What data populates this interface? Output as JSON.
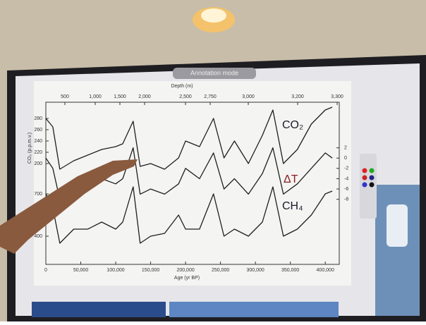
{
  "banner": "Annotation mode",
  "chart_data": {
    "type": "line",
    "xlabel": "Age (yr BP)",
    "x2label": "Depth (m)",
    "x": [
      0,
      10000,
      20000,
      40000,
      60000,
      80000,
      100000,
      110000,
      125000,
      135000,
      150000,
      170000,
      190000,
      200000,
      220000,
      240000,
      255000,
      270000,
      290000,
      310000,
      325000,
      340000,
      360000,
      380000,
      400000,
      410000
    ],
    "xlim": [
      0,
      420000
    ],
    "xticks": [
      0,
      {
        "value": 50000,
        "label": "50,000"
      },
      {
        "value": 100000,
        "label": "100,000"
      },
      {
        "value": 150000,
        "label": "150,000"
      },
      {
        "value": 200000,
        "label": "200,000"
      },
      {
        "value": 250000,
        "label": "250,000"
      },
      {
        "value": 300000,
        "label": "300,000"
      },
      {
        "value": 350000,
        "label": "350,000"
      },
      {
        "value": 400000,
        "label": "400,000"
      }
    ],
    "x2ticks": [
      500,
      {
        "value": 1000,
        "label": "1,000"
      },
      {
        "value": 1500,
        "label": "1,500"
      },
      {
        "value": 2000,
        "label": "2,000"
      },
      {
        "value": 2500,
        "label": "2,500"
      },
      {
        "value": 2750,
        "label": "2,750"
      },
      {
        "value": 3000,
        "label": "3,000"
      },
      {
        "value": 3200,
        "label": "3,200"
      },
      {
        "value": 3300,
        "label": "3,300"
      }
    ],
    "series": [
      {
        "name": "CO₂",
        "color": "#1f1f1f",
        "label_color": "#1a1a2a",
        "ylabel": "CO₂ (p.p.m.v.)",
        "ylim": [
          160,
          300
        ],
        "yticks": [
          200,
          220,
          240,
          260,
          280
        ],
        "values": [
          280,
          265,
          190,
          205,
          215,
          225,
          230,
          235,
          275,
          195,
          200,
          190,
          210,
          240,
          230,
          280,
          210,
          240,
          200,
          250,
          295,
          200,
          225,
          270,
          295,
          300
        ]
      },
      {
        "name": "ΔT",
        "color": "#1f1f1f",
        "label_color": "#8a1c1c",
        "ylim": [
          -9,
          4
        ],
        "yticks": [
          2,
          0,
          -2,
          -4,
          -6,
          -8
        ],
        "values": [
          0,
          -2,
          -8,
          -6,
          -5,
          -4,
          -5,
          -4,
          2,
          -7,
          -6,
          -7,
          -5,
          -2,
          -4,
          1,
          -6,
          -4,
          -7,
          -3,
          2,
          -7,
          -5,
          -2,
          1,
          0
        ]
      },
      {
        "name": "CH₄",
        "color": "#1f1f1f",
        "label_color": "#1a1a2a",
        "ylim": [
          300,
          800
        ],
        "yticks": [
          400,
          700
        ],
        "values": [
          700,
          600,
          350,
          450,
          450,
          500,
          450,
          500,
          750,
          350,
          400,
          420,
          550,
          450,
          450,
          700,
          400,
          450,
          400,
          500,
          750,
          400,
          450,
          550,
          700,
          720
        ]
      }
    ]
  }
}
